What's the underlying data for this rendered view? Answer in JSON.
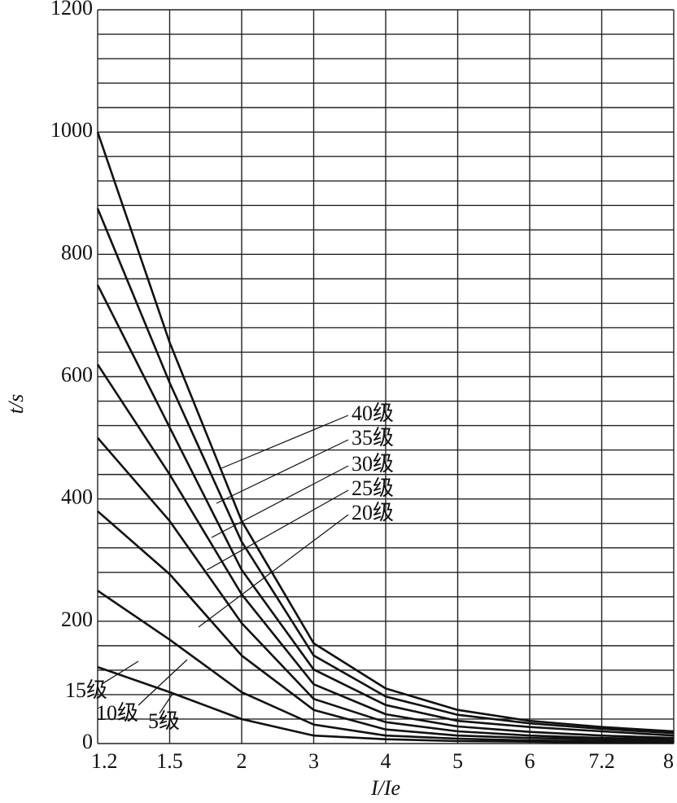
{
  "chart_data": {
    "type": "line",
    "x_label": "I/Ie",
    "y_label": "t/s",
    "categories": [
      "1.2",
      "1.5",
      "2",
      "3",
      "4",
      "5",
      "6",
      "7.2",
      "8"
    ],
    "ylim": [
      0,
      1200
    ],
    "yticks": [
      0,
      200,
      400,
      600,
      800,
      1000,
      1200
    ],
    "ygrid": [
      0,
      40,
      80,
      120,
      160,
      200,
      240,
      280,
      320,
      360,
      400,
      440,
      480,
      520,
      560,
      600,
      640,
      680,
      720,
      760,
      800,
      840,
      880,
      920,
      960,
      1000,
      1040,
      1080,
      1120,
      1160,
      1200
    ],
    "grid": true,
    "color": "#111111",
    "series": [
      {
        "name": "40级",
        "values": [
          1000,
          656,
          364,
          164,
          90,
          55,
          37,
          27,
          20
        ]
      },
      {
        "name": "35级",
        "values": [
          875,
          590,
          330,
          144,
          77,
          47,
          33,
          24,
          17
        ]
      },
      {
        "name": "30级",
        "values": [
          750,
          517,
          284,
          121,
          63,
          37,
          27,
          20,
          13
        ]
      },
      {
        "name": "25级",
        "values": [
          620,
          440,
          244,
          97,
          48,
          28,
          19,
          13,
          9
        ]
      },
      {
        "name": "20级",
        "values": [
          500,
          364,
          197,
          73,
          35,
          20,
          13,
          9,
          7
        ]
      },
      {
        "name": "15级",
        "values": [
          380,
          277,
          144,
          55,
          23,
          13,
          9,
          7,
          4
        ]
      },
      {
        "name": "10级",
        "values": [
          250,
          170,
          84,
          31,
          13,
          8,
          5,
          4,
          3
        ]
      },
      {
        "name": "5级",
        "values": [
          125,
          84,
          40,
          13,
          7,
          4,
          3,
          1,
          1
        ]
      }
    ]
  }
}
